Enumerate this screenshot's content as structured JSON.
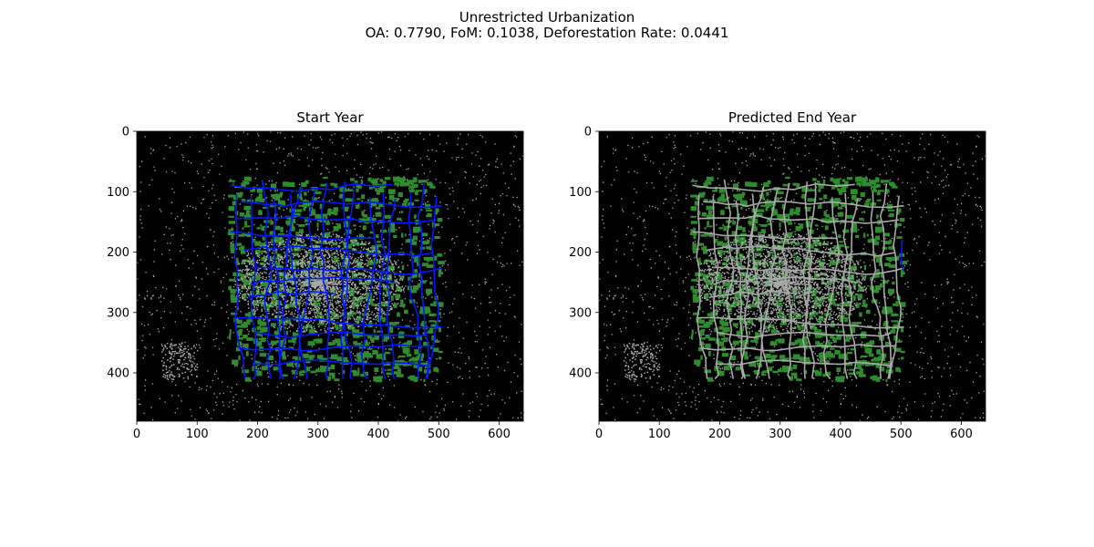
{
  "suptitle": {
    "line1": "Unrestricted Urbanization",
    "line2": "OA: 0.7790, FoM: 0.1038, Deforestation Rate: 0.0441"
  },
  "colors": {
    "background": "#000000",
    "urban": "#a9a9a9",
    "forest": "#2e8b2e",
    "roads": "#0019ff",
    "frame": "#000000"
  },
  "chart_data": [
    {
      "type": "heatmap",
      "title": "Start Year",
      "xlim": [
        0,
        640
      ],
      "ylim": [
        480,
        0
      ],
      "xticks": [
        "0",
        "100",
        "200",
        "300",
        "400",
        "500",
        "600"
      ],
      "yticks": [
        "0",
        "100",
        "200",
        "300",
        "400"
      ],
      "classes": [
        "non-urban",
        "urban",
        "forest",
        "roads"
      ],
      "road_color": "blue"
    },
    {
      "type": "heatmap",
      "title": "Predicted End Year",
      "xlim": [
        0,
        640
      ],
      "ylim": [
        480,
        0
      ],
      "xticks": [
        "0",
        "100",
        "200",
        "300",
        "400",
        "500",
        "600"
      ],
      "yticks": [
        "0",
        "100",
        "200",
        "300",
        "400"
      ],
      "classes": [
        "non-urban",
        "urban",
        "forest",
        "roads"
      ],
      "road_color": "gray"
    }
  ]
}
